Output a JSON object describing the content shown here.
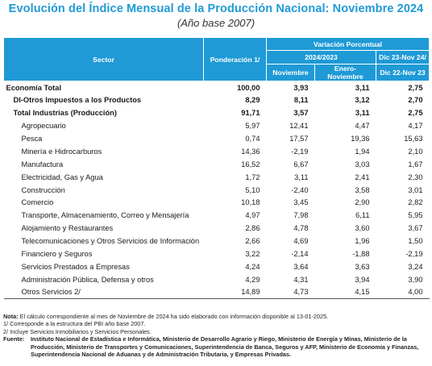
{
  "title": "Evolución del Índice Mensual de la Producción Nacional: Noviembre 2024",
  "subtitle": "(Año base 2007)",
  "header": {
    "sector": "Sector",
    "ponderacion": "Ponderación 1/",
    "variacion": "Variación Porcentual",
    "periodo": "2024/2023",
    "anual_top": "Dic 23-Nov 24/",
    "noviembre": "Noviembre",
    "enero_noviembre": "Enero-Noviembre",
    "anual_bottom": "Dic 22-Nov 23"
  },
  "rows": [
    {
      "sector": "Economía Total",
      "pond": "100,00",
      "nov": "3,93",
      "enenov": "3,11",
      "anual": "2,75",
      "style": "bold"
    },
    {
      "sector": "DI-Otros Impuestos a los Productos",
      "pond": "8,29",
      "nov": "8,11",
      "enenov": "3,12",
      "anual": "2,70",
      "style": "bold1"
    },
    {
      "sector": "Total  Industrias (Producción)",
      "pond": "91,71",
      "nov": "3,57",
      "enenov": "3,11",
      "anual": "2,75",
      "style": "bold1"
    },
    {
      "sector": "Agropecuario",
      "pond": "5,97",
      "nov": "12,41",
      "enenov": "4,47",
      "anual": "4,17",
      "style": "ind2"
    },
    {
      "sector": "Pesca",
      "pond": "0,74",
      "nov": "17,57",
      "enenov": "19,36",
      "anual": "15,63",
      "style": "ind2"
    },
    {
      "sector": "Minería e Hidrocarburos",
      "pond": "14,36",
      "nov": "-2,19",
      "enenov": "1,94",
      "anual": "2,10",
      "style": "ind2"
    },
    {
      "sector": "Manufactura",
      "pond": "16,52",
      "nov": "6,67",
      "enenov": "3,03",
      "anual": "1,67",
      "style": "ind2"
    },
    {
      "sector": "Electricidad, Gas y Agua",
      "pond": "1,72",
      "nov": "3,11",
      "enenov": "2,41",
      "anual": "2,30",
      "style": "ind2"
    },
    {
      "sector": "Construcción",
      "pond": "5,10",
      "nov": "-2,40",
      "enenov": "3,58",
      "anual": "3,01",
      "style": "ind2"
    },
    {
      "sector": "Comercio",
      "pond": "10,18",
      "nov": "3,45",
      "enenov": "2,90",
      "anual": "2,82",
      "style": "ind2"
    },
    {
      "sector": "Transporte, Almacenamiento, Correo y Mensajería",
      "pond": "4,97",
      "nov": "7,98",
      "enenov": "6,11",
      "anual": "5,95",
      "style": "ind2"
    },
    {
      "sector": "Alojamiento y Restaurantes",
      "pond": "2,86",
      "nov": "4,78",
      "enenov": "3,60",
      "anual": "3,67",
      "style": "ind2"
    },
    {
      "sector": "Telecomunicaciones y Otros Servicios de Información",
      "pond": "2,66",
      "nov": "4,69",
      "enenov": "1,96",
      "anual": "1,50",
      "style": "ind2"
    },
    {
      "sector": "Financiero y Seguros",
      "pond": "3,22",
      "nov": "-2,14",
      "enenov": "-1,88",
      "anual": "-2,19",
      "style": "ind2"
    },
    {
      "sector": "Servicios Prestados a Empresas",
      "pond": "4,24",
      "nov": "3,64",
      "enenov": "3,63",
      "anual": "3,24",
      "style": "ind2"
    },
    {
      "sector": "Administración Pública, Defensa y otros",
      "pond": "4,29",
      "nov": "4,31",
      "enenov": "3,94",
      "anual": "3,90",
      "style": "ind2"
    },
    {
      "sector": "Otros Servicios 2/",
      "pond": "14,89",
      "nov": "4,73",
      "enenov": "4,15",
      "anual": "4,00",
      "style": "ind2"
    }
  ],
  "notes": {
    "nota_label": "Nota:",
    "nota_text": " El cálculo correspondiente al mes de Noviembre de 2024 ha sido elaborado con información disponible al 13-01-2025.",
    "note1": "1/ Corresponde a la estructura del PBI año base 2007.",
    "note2": "2/ Incluye Servicios Inmobiliarios y Servicios Personales.",
    "fuente_label": "Fuente:",
    "fuente_text": "Instituto Nacional de Estadística e Informática, Ministerio de Desarrollo Agrario y Riego, Ministerio de Energía y Minas, Ministerio de la Producción, Ministerio de Transportes y Comunicaciones, Superintendencia de Banca, Seguros y AFP, Ministerio de Economía y Finanzas, Superintendencia Nacional de Aduanas y de Administración Tributaria, y Empresas Privadas."
  },
  "colors": {
    "accent": "#1f9ad6"
  }
}
